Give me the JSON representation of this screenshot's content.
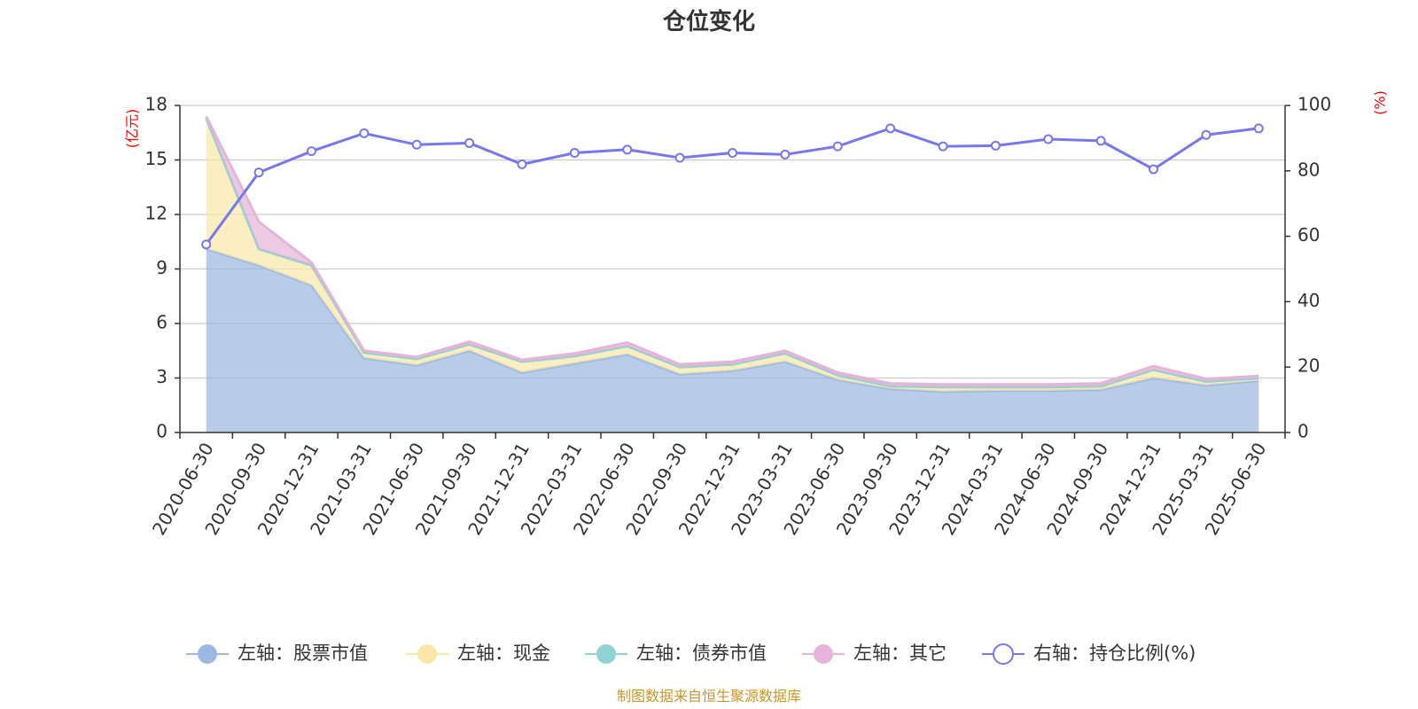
{
  "chart_data": {
    "type": "area",
    "title": "仓位变化",
    "left_unit": "(亿元)",
    "right_unit": "(%)",
    "categories": [
      "2020-06-30",
      "2020-09-30",
      "2020-12-31",
      "2021-03-31",
      "2021-06-30",
      "2021-09-30",
      "2021-12-31",
      "2022-03-31",
      "2022-06-30",
      "2022-09-30",
      "2022-12-31",
      "2023-03-31",
      "2023-06-30",
      "2023-09-30",
      "2023-12-31",
      "2024-03-31",
      "2024-06-30",
      "2024-09-30",
      "2024-12-31",
      "2025-03-31",
      "2025-06-30"
    ],
    "left_axis": {
      "min": 0,
      "max": 18,
      "ticks": [
        0,
        3,
        6,
        9,
        12,
        15,
        18
      ]
    },
    "right_axis": {
      "min": 0,
      "max": 100,
      "ticks": [
        0,
        20,
        40,
        60,
        80,
        100
      ]
    },
    "grid": true,
    "legend_position": "bottom",
    "series": [
      {
        "name": "左轴：股票市值",
        "axis": "left",
        "kind": "stacked-area",
        "color": "#9db9e2",
        "values": [
          10.1,
          9.2,
          8.1,
          4.1,
          3.7,
          4.5,
          3.3,
          3.8,
          4.3,
          3.2,
          3.4,
          3.9,
          2.9,
          2.4,
          2.25,
          2.3,
          2.3,
          2.35,
          3.0,
          2.6,
          2.85
        ]
      },
      {
        "name": "左轴：现金",
        "axis": "left",
        "kind": "stacked-area",
        "color": "#f9e8a8",
        "values": [
          7.2,
          0.9,
          1.1,
          0.3,
          0.35,
          0.35,
          0.6,
          0.4,
          0.45,
          0.4,
          0.35,
          0.45,
          0.25,
          0.15,
          0.2,
          0.15,
          0.15,
          0.15,
          0.45,
          0.2,
          0.15
        ]
      },
      {
        "name": "左轴：债券市值",
        "axis": "left",
        "kind": "stacked-area",
        "color": "#8fd3d3",
        "values": [
          0,
          0,
          0,
          0,
          0,
          0,
          0,
          0,
          0,
          0,
          0,
          0,
          0,
          0,
          0.05,
          0.05,
          0.05,
          0.05,
          0,
          0,
          0
        ]
      },
      {
        "name": "左轴：其它",
        "axis": "left",
        "kind": "stacked-area",
        "color": "#e5b4d8",
        "values": [
          0.1,
          1.5,
          0.15,
          0.1,
          0.1,
          0.15,
          0.1,
          0.15,
          0.2,
          0.15,
          0.15,
          0.15,
          0.15,
          0.15,
          0.15,
          0.15,
          0.15,
          0.15,
          0.2,
          0.15,
          0.1
        ]
      },
      {
        "name": "右轴：持仓比例(%)",
        "axis": "right",
        "kind": "line",
        "color": "#7777ee",
        "values": [
          57.5,
          79.5,
          86,
          91.5,
          88,
          88.5,
          82,
          85.5,
          86.5,
          84,
          85.5,
          85,
          87.5,
          93,
          87.5,
          87.7,
          89.7,
          89.2,
          80.5,
          91,
          93
        ]
      }
    ],
    "source_note": "制图数据来自恒生聚源数据库"
  }
}
